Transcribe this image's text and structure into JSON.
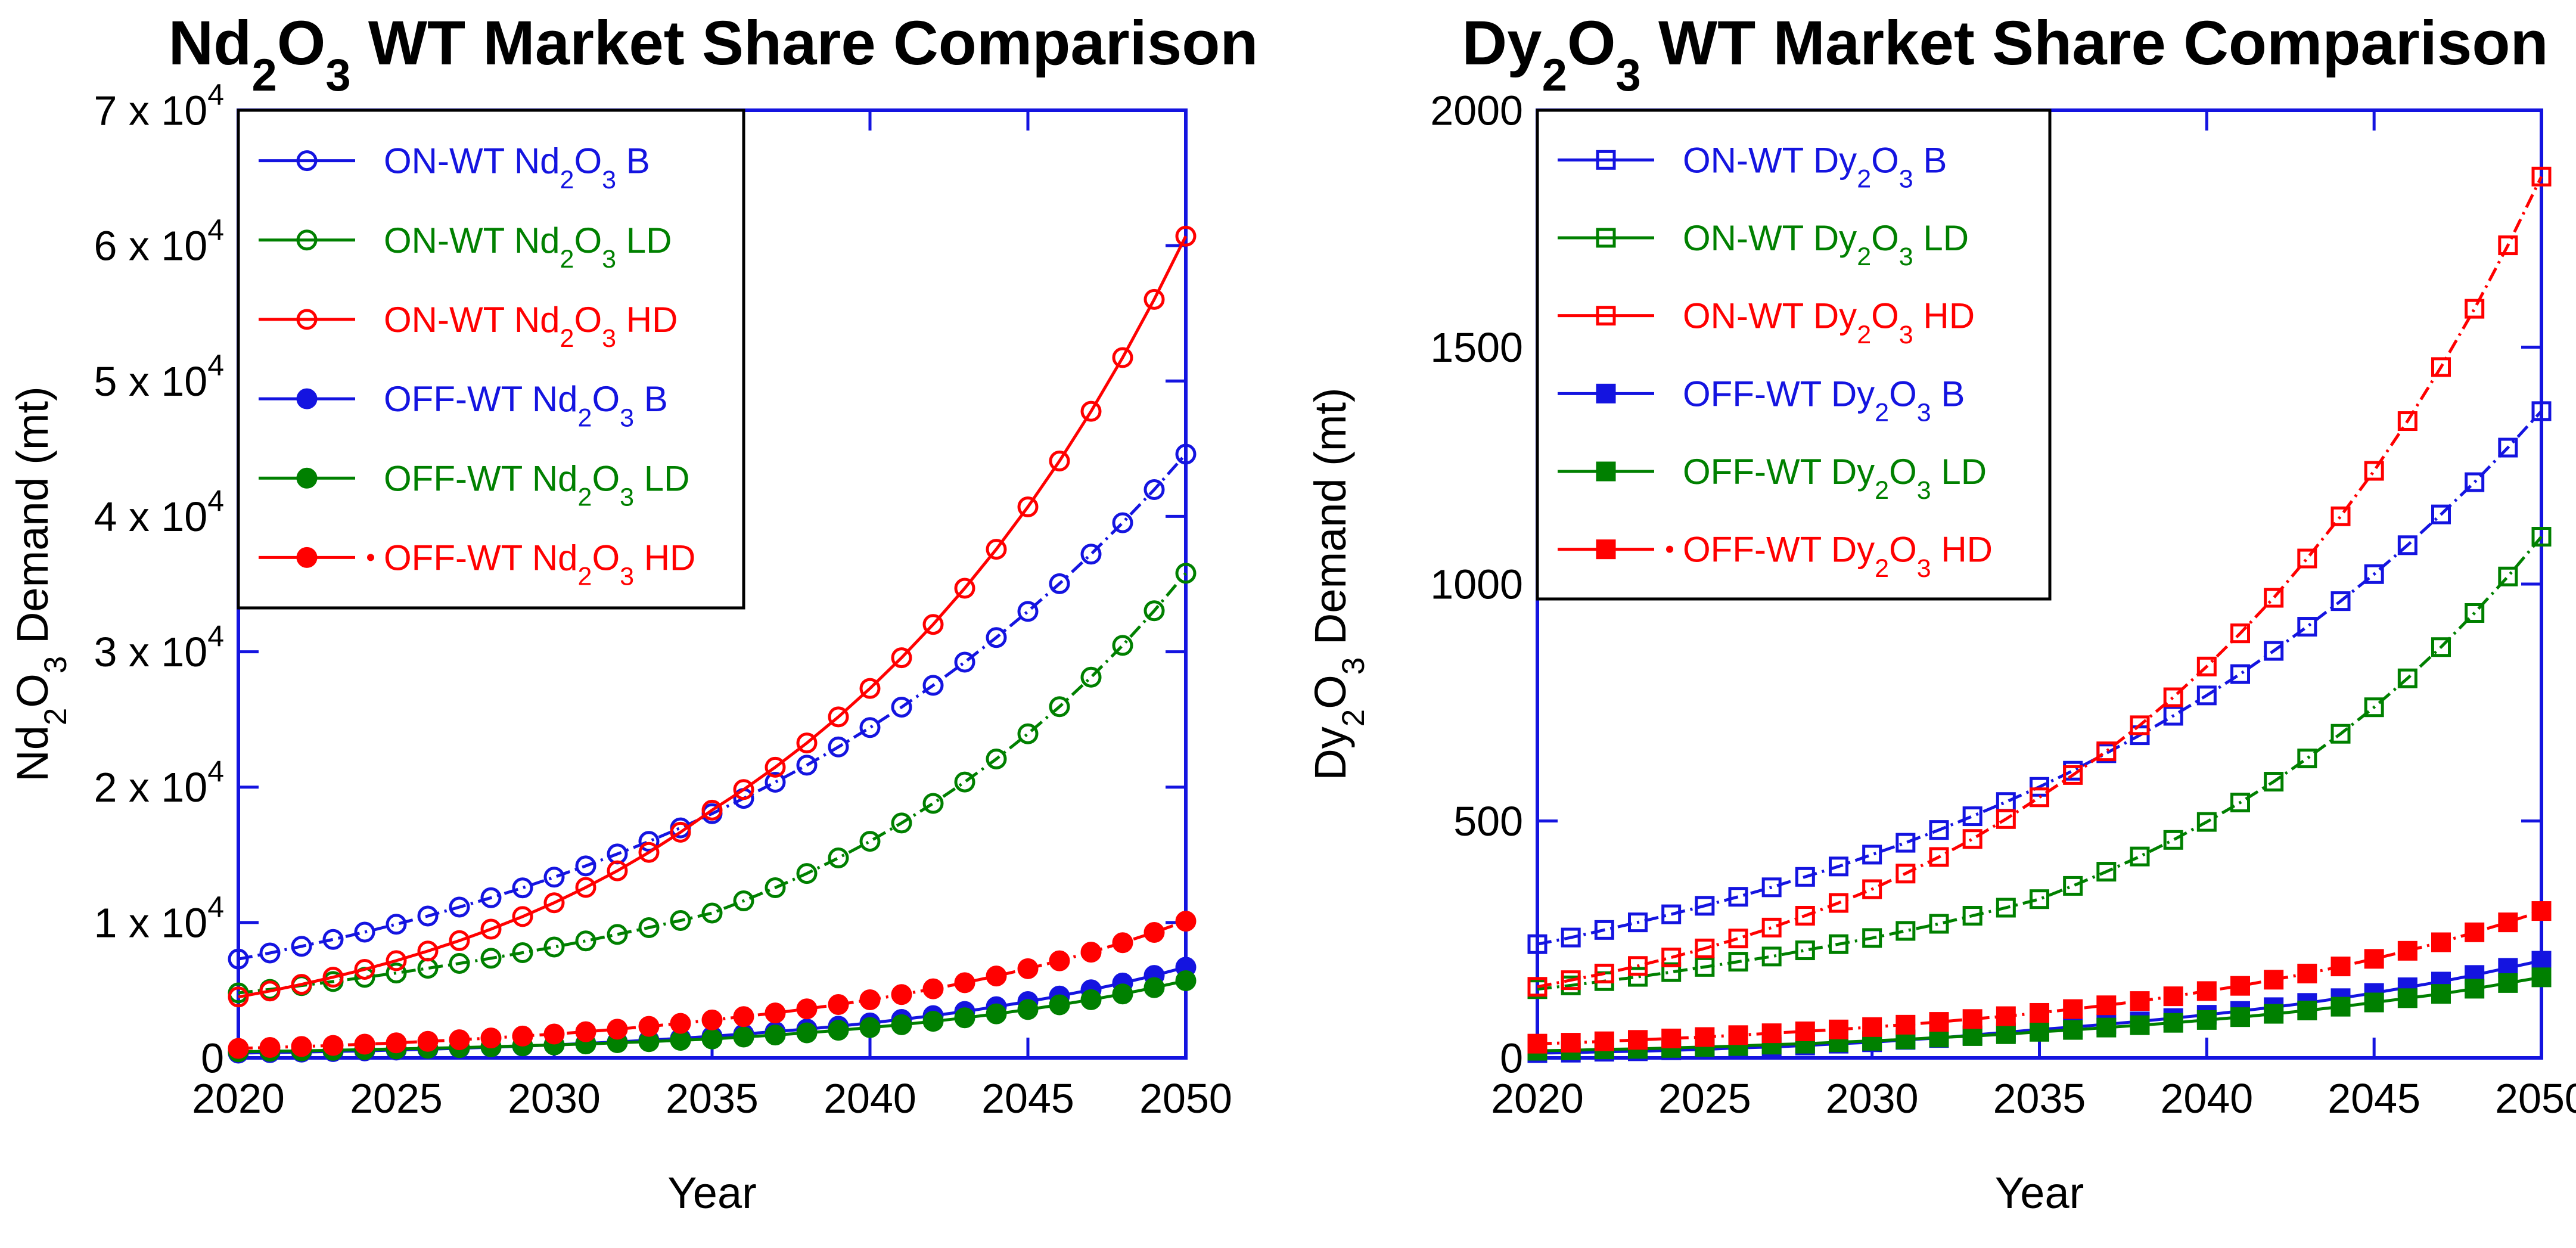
{
  "figure": {
    "background": "#ffffff",
    "title_color": "#000000",
    "tick_color": "#000000"
  },
  "chart_data": [
    {
      "id": "nd2o3-wt",
      "type": "line",
      "title": "Nd|2|O|3| WT Market Share Comparison",
      "xlabel": "Year",
      "ylabel": "Nd|2|O|3| Demand (mt)",
      "axis_color": "#1414e0",
      "legend_position": "top-left",
      "grid": false,
      "xlim": [
        2020,
        2050
      ],
      "ylim": [
        0,
        70000
      ],
      "xticks": [
        "2020",
        "2025",
        "2030",
        "2035",
        "2040",
        "2045",
        "2050"
      ],
      "xtick_values": [
        2020,
        2025,
        2030,
        2035,
        2040,
        2045,
        2050
      ],
      "yticks": [
        {
          "v": 0,
          "label": "0"
        },
        {
          "v": 10000,
          "label": "1 x 10^4"
        },
        {
          "v": 20000,
          "label": "2 x 10^4"
        },
        {
          "v": 30000,
          "label": "3 x 10^4"
        },
        {
          "v": 40000,
          "label": "4 x 10^4"
        },
        {
          "v": 50000,
          "label": "5 x 10^4"
        },
        {
          "v": 60000,
          "label": "6 x 10^4"
        },
        {
          "v": 70000,
          "label": "7 x 10^4"
        }
      ],
      "x": [
        2020,
        2021,
        2022,
        2023,
        2024,
        2025,
        2026,
        2027,
        2028,
        2029,
        2030,
        2031,
        2032,
        2033,
        2034,
        2035,
        2036,
        2037,
        2038,
        2039,
        2040,
        2041,
        2042,
        2043,
        2044,
        2045,
        2046,
        2047,
        2048,
        2049,
        2050
      ],
      "series": [
        {
          "name": "ON-WT Nd|2|O|3| B",
          "color": "#1414e0",
          "marker": "circle-open",
          "line": "dashdot",
          "legend_dot": false,
          "values": [
            7300,
            7750,
            8240,
            8750,
            9290,
            9870,
            10480,
            11140,
            11830,
            12560,
            13350,
            14180,
            15060,
            15990,
            16990,
            18040,
            19170,
            20360,
            21620,
            22970,
            24400,
            25910,
            27520,
            29230,
            31050,
            32980,
            35030,
            37210,
            39530,
            41980,
            44600
          ]
        },
        {
          "name": "ON-WT Nd|2|O|3| LD",
          "color": "#008000",
          "marker": "circle-open",
          "line": "dashdot",
          "legend_dot": false,
          "values": [
            4800,
            5060,
            5340,
            5640,
            5950,
            6270,
            6620,
            6980,
            7360,
            7770,
            8190,
            8640,
            9120,
            9620,
            10150,
            10700,
            11600,
            12570,
            13620,
            14770,
            16000,
            17350,
            18800,
            20380,
            22080,
            23940,
            25940,
            28120,
            30470,
            33030,
            35800
          ]
        },
        {
          "name": "ON-WT Nd|2|O|3| HD",
          "color": "#ff0000",
          "marker": "circle-open",
          "line": "solid",
          "legend_dot": false,
          "values": [
            4500,
            4940,
            5430,
            5960,
            6540,
            7180,
            7890,
            8660,
            9510,
            10440,
            11460,
            12590,
            13820,
            15180,
            16670,
            18300,
            19820,
            21470,
            23260,
            25190,
            27290,
            29560,
            32020,
            34690,
            37570,
            40700,
            44090,
            47760,
            51730,
            56030,
            60700
          ]
        },
        {
          "name": "OFF-WT Nd|2|O|3| B",
          "color": "#1414e0",
          "marker": "circle-filled",
          "line": "solid",
          "legend_dot": false,
          "values": [
            350,
            390,
            430,
            470,
            520,
            580,
            640,
            710,
            790,
            870,
            960,
            1070,
            1180,
            1310,
            1450,
            1600,
            1760,
            1940,
            2130,
            2340,
            2580,
            2840,
            3120,
            3430,
            3780,
            4160,
            4570,
            5030,
            5530,
            6090,
            6700
          ]
        },
        {
          "name": "OFF-WT Nd|2|O|3| LD",
          "color": "#008000",
          "marker": "circle-filled",
          "line": "solid",
          "legend_dot": false,
          "values": [
            450,
            490,
            520,
            560,
            610,
            660,
            710,
            760,
            820,
            890,
            960,
            1030,
            1120,
            1200,
            1300,
            1400,
            1540,
            1690,
            1850,
            2040,
            2240,
            2450,
            2700,
            2960,
            3250,
            3570,
            3920,
            4300,
            4720,
            5190,
            5700
          ]
        },
        {
          "name": "OFF-WT Nd|2|O|3| HD",
          "color": "#ff0000",
          "marker": "circle-filled",
          "line": "dashdot",
          "legend_dot": true,
          "values": [
            700,
            770,
            840,
            920,
            1010,
            1110,
            1220,
            1340,
            1470,
            1610,
            1760,
            1930,
            2120,
            2330,
            2550,
            2800,
            3050,
            3320,
            3620,
            3940,
            4290,
            4680,
            5100,
            5550,
            6050,
            6590,
            7170,
            7810,
            8510,
            9270,
            10100
          ]
        }
      ]
    },
    {
      "id": "dy2o3-wt",
      "type": "line",
      "title": "Dy|2|O|3| WT Market Share Comparison",
      "xlabel": "Year",
      "ylabel": "Dy|2|O|3| Demand (mt)",
      "axis_color": "#1414e0",
      "legend_position": "top-left",
      "grid": false,
      "xlim": [
        2020,
        2050
      ],
      "ylim": [
        0,
        2000
      ],
      "xticks": [
        "2020",
        "2025",
        "2030",
        "2035",
        "2040",
        "2045",
        "2050"
      ],
      "xtick_values": [
        2020,
        2025,
        2030,
        2035,
        2040,
        2045,
        2050
      ],
      "yticks": [
        {
          "v": 0,
          "label": "0"
        },
        {
          "v": 500,
          "label": "500"
        },
        {
          "v": 1000,
          "label": "1000"
        },
        {
          "v": 1500,
          "label": "1500"
        },
        {
          "v": 2000,
          "label": "2000"
        }
      ],
      "x": [
        2020,
        2021,
        2022,
        2023,
        2024,
        2025,
        2026,
        2027,
        2028,
        2029,
        2030,
        2031,
        2032,
        2033,
        2034,
        2035,
        2036,
        2037,
        2038,
        2039,
        2040,
        2041,
        2042,
        2043,
        2044,
        2045,
        2046,
        2047,
        2048,
        2049,
        2050
      ],
      "series": [
        {
          "name": "ON-WT Dy|2|O|3| B",
          "color": "#1414e0",
          "marker": "square-open",
          "line": "dashdot",
          "legend_dot": false,
          "values": [
            240,
            254,
            270,
            286,
            303,
            321,
            340,
            360,
            382,
            404,
            429,
            454,
            481,
            510,
            540,
            572,
            606,
            643,
            681,
            722,
            765,
            810,
            859,
            910,
            964,
            1021,
            1082,
            1147,
            1215,
            1288,
            1365
          ]
        },
        {
          "name": "ON-WT Dy|2|O|3| LD",
          "color": "#008000",
          "marker": "square-open",
          "line": "dashdot",
          "legend_dot": false,
          "values": [
            145,
            153,
            162,
            171,
            181,
            192,
            203,
            214,
            227,
            240,
            253,
            268,
            283,
            300,
            317,
            335,
            363,
            393,
            425,
            460,
            498,
            539,
            583,
            632,
            684,
            740,
            801,
            867,
            939,
            1016,
            1100
          ]
        },
        {
          "name": "ON-WT Dy|2|O|3| HD",
          "color": "#ff0000",
          "marker": "square-open",
          "line": "dashdot",
          "legend_dot": false,
          "values": [
            150,
            164,
            178,
            194,
            212,
            231,
            252,
            275,
            300,
            327,
            356,
            389,
            424,
            462,
            504,
            550,
            597,
            647,
            702,
            761,
            826,
            896,
            971,
            1054,
            1143,
            1239,
            1344,
            1458,
            1581,
            1715,
            1860
          ]
        },
        {
          "name": "OFF-WT Dy|2|O|3| B",
          "color": "#1414e0",
          "marker": "square-filled",
          "line": "solid",
          "legend_dot": false,
          "values": [
            10,
            11,
            13,
            14,
            16,
            18,
            21,
            23,
            26,
            30,
            33,
            38,
            42,
            48,
            54,
            60,
            65,
            71,
            77,
            84,
            91,
            99,
            107,
            116,
            126,
            137,
            149,
            161,
            175,
            190,
            205
          ]
        },
        {
          "name": "OFF-WT Dy|2|O|3| LD",
          "color": "#008000",
          "marker": "square-filled",
          "line": "solid",
          "legend_dot": false,
          "values": [
            15,
            16,
            18,
            19,
            21,
            23,
            25,
            28,
            30,
            33,
            36,
            39,
            43,
            46,
            50,
            55,
            59,
            64,
            69,
            74,
            80,
            86,
            93,
            100,
            108,
            117,
            126,
            135,
            146,
            158,
            170
          ]
        },
        {
          "name": "OFF-WT Dy|2|O|3| HD",
          "color": "#ff0000",
          "marker": "square-filled",
          "line": "dashdot",
          "legend_dot": true,
          "values": [
            30,
            32,
            35,
            38,
            41,
            44,
            48,
            52,
            56,
            60,
            65,
            70,
            76,
            82,
            88,
            95,
            103,
            111,
            120,
            130,
            141,
            152,
            165,
            178,
            193,
            209,
            226,
            244,
            265,
            286,
            310
          ]
        }
      ]
    }
  ]
}
